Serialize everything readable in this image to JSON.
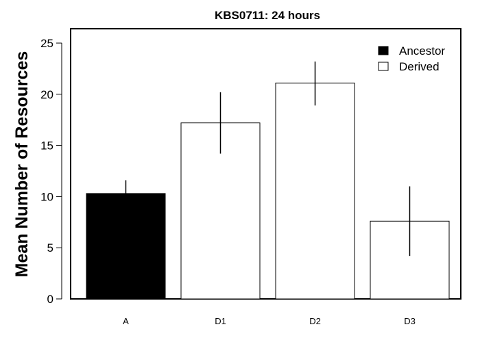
{
  "chart_data": {
    "type": "bar",
    "title": "KBS0711: 24 hours",
    "xlabel": "",
    "ylabel": "Mean Number of Resources",
    "categories": [
      "A",
      "D1",
      "D2",
      "D3"
    ],
    "values": [
      10.3,
      17.2,
      21.1,
      7.6
    ],
    "error_low": [
      8.9,
      14.2,
      18.9,
      4.2
    ],
    "error_high": [
      11.6,
      20.2,
      23.2,
      11.0
    ],
    "group": [
      "Ancestor",
      "Derived",
      "Derived",
      "Derived"
    ],
    "ylim": [
      0,
      25
    ],
    "yticks": [
      0,
      5,
      10,
      15,
      20,
      25
    ],
    "grid": false,
    "legend": {
      "placement": "top-right",
      "entries": [
        {
          "label": "Ancestor",
          "fill": "#000000"
        },
        {
          "label": "Derived",
          "fill": "#ffffff"
        }
      ]
    },
    "colors": {
      "Ancestor": "#000000",
      "Derived": "#ffffff",
      "edge": "#000000"
    }
  }
}
